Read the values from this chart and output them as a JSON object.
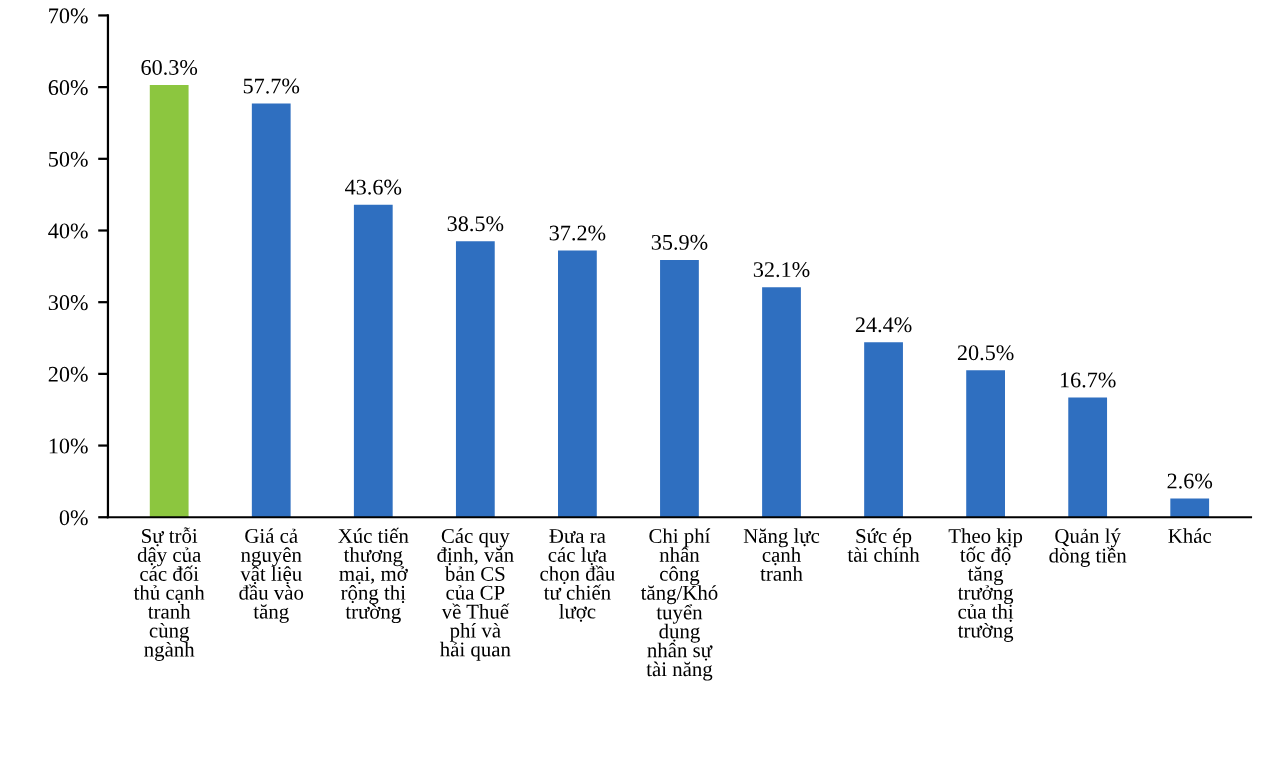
{
  "chart_data": {
    "type": "bar",
    "categories": [
      "Sự trỗi\ndậy của\ncác đối\nthủ cạnh\ntranh\ncùng\nngành",
      "Giá cả\nnguyên\nvật liệu\nđầu vào\ntăng",
      "Xúc tiến\nthương\nmại, mở\nrộng thị\ntrường",
      "Các quy\nđịnh, văn\nbản CS\ncủa CP\nvề Thuế\nphí và\nhải quan",
      "Đưa ra\ncác lựa\nchọn đầu\ntư chiến\nlược",
      "Chi phí\nnhân\ncông\ntăng/Khó\ntuyển\ndụng\nnhân sự\ntài năng",
      "Năng lực\ncạnh\ntranh",
      "Sức ép\ntài chính",
      "Theo kịp\ntốc độ\ntăng\ntrưởng\ncủa thị\ntrường",
      "Quản lý\ndòng tiền",
      "Khác"
    ],
    "values": [
      60.3,
      57.7,
      43.6,
      38.5,
      37.2,
      35.9,
      32.1,
      24.4,
      20.5,
      16.7,
      2.6
    ],
    "value_labels": [
      "60.3%",
      "57.7%",
      "43.6%",
      "38.5%",
      "37.2%",
      "35.9%",
      "32.1%",
      "24.4%",
      "20.5%",
      "16.7%",
      "2.6%"
    ],
    "colors": [
      "#8cc63f",
      "#2f6fc0",
      "#2f6fc0",
      "#2f6fc0",
      "#2f6fc0",
      "#2f6fc0",
      "#2f6fc0",
      "#2f6fc0",
      "#2f6fc0",
      "#2f6fc0",
      "#2f6fc0"
    ],
    "ylim": [
      0,
      70
    ],
    "yticks": [
      {
        "value": 0,
        "label": "0%"
      },
      {
        "value": 10,
        "label": "10%"
      },
      {
        "value": 20,
        "label": "20%"
      },
      {
        "value": 30,
        "label": "30%"
      },
      {
        "value": 40,
        "label": "40%"
      },
      {
        "value": 50,
        "label": "50%"
      },
      {
        "value": 60,
        "label": "60%"
      },
      {
        "value": 70,
        "label": "70%"
      }
    ],
    "grid": false
  }
}
